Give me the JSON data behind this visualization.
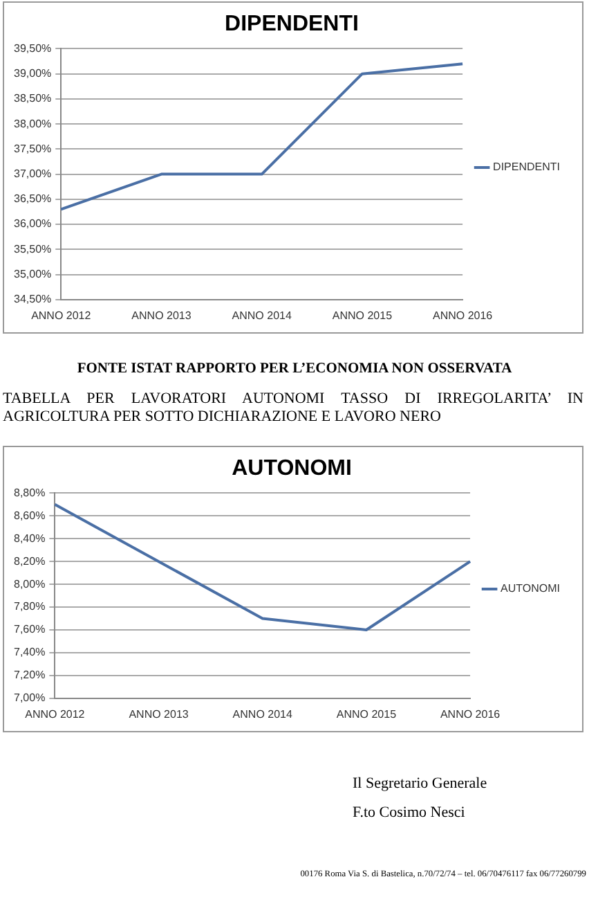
{
  "chart_data": [
    {
      "type": "line",
      "title": "DIPENDENTI",
      "categories": [
        "ANNO 2012",
        "ANNO 2013",
        "ANNO 2014",
        "ANNO 2015",
        "ANNO 2016"
      ],
      "series": [
        {
          "name": "DIPENDENTI",
          "color": "#4a6fa5",
          "values": [
            36.3,
            37.0,
            37.0,
            39.0,
            39.2
          ]
        }
      ],
      "ylim": [
        34.5,
        39.5
      ],
      "yticks": [
        {
          "value": 34.5,
          "label": "34,50%"
        },
        {
          "value": 35,
          "label": "35,00%"
        },
        {
          "value": 35.5,
          "label": "35,50%"
        },
        {
          "value": 36,
          "label": "36,00%"
        },
        {
          "value": 36.5,
          "label": "36,50%"
        },
        {
          "value": 37,
          "label": "37,00%"
        },
        {
          "value": 37.5,
          "label": "37,50%"
        },
        {
          "value": 38,
          "label": "38,00%"
        },
        {
          "value": 38.5,
          "label": "38,50%"
        },
        {
          "value": 39,
          "label": "39,00%"
        },
        {
          "value": 39.5,
          "label": "39,50%"
        }
      ],
      "grid": "y",
      "legend": "right",
      "annotations": [
        "FONTE ISTAT RAPPORTO PER L’ECONOMIA NON OSSERVATA"
      ]
    },
    {
      "type": "line",
      "title": "AUTONOMI",
      "categories": [
        "ANNO 2012",
        "ANNO 2013",
        "ANNO 2014",
        "ANNO 2015",
        "ANNO 2016"
      ],
      "series": [
        {
          "name": "AUTONOMI",
          "color": "#4a6fa5",
          "values": [
            8.7,
            8.2,
            7.7,
            7.6,
            8.2
          ]
        }
      ],
      "ylim": [
        7.0,
        8.8
      ],
      "yticks": [
        {
          "value": 7.0,
          "label": "7,00%"
        },
        {
          "value": 7.2,
          "label": "7,20%"
        },
        {
          "value": 7.4,
          "label": "7,40%"
        },
        {
          "value": 7.6,
          "label": "7,60%"
        },
        {
          "value": 7.8,
          "label": "7,80%"
        },
        {
          "value": 8.0,
          "label": "8,00%"
        },
        {
          "value": 8.2,
          "label": "8,20%"
        },
        {
          "value": 8.4,
          "label": "8,40%"
        },
        {
          "value": 8.6,
          "label": "8,60%"
        },
        {
          "value": 8.8,
          "label": "8,80%"
        }
      ],
      "grid": "y",
      "legend": "right",
      "annotations": [
        "TABELLA PER LAVORATORI AUTONOMI TASSO DI IRREGOLARITA’ IN AGRICOLTURA PER SOTTO DICHIARAZIONE E LAVORO NERO",
        "Il Segretario Generale",
        "F.to Cosimo Nesci",
        "00176 Roma Via S. di Bastelica, n.70/72/74 – tel. 06/70476117 fax 06/77260799"
      ]
    }
  ]
}
